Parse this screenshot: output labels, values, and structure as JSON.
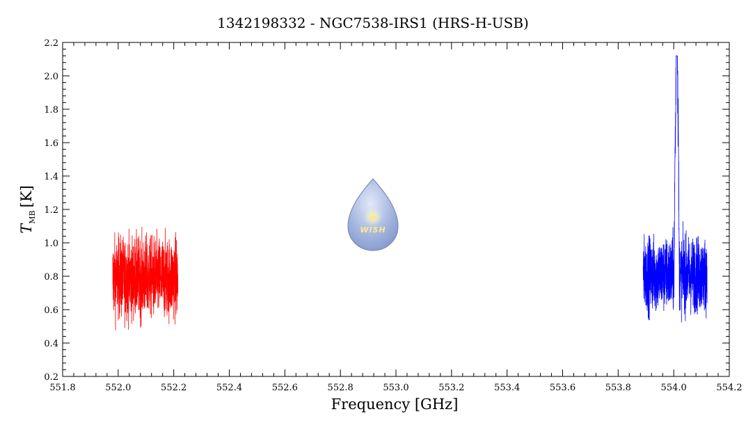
{
  "chart_data": {
    "type": "line",
    "title": "1342198332 - NGC7538-IRS1 (HRS-H-USB)",
    "xlabel": "Frequency [GHz]",
    "ylabel_main": "T",
    "ylabel_sub": "MB",
    "ylabel_unit": "[K]",
    "xlim": [
      551.8,
      554.2
    ],
    "ylim": [
      0.2,
      2.2
    ],
    "xticks": [
      551.8,
      552.0,
      552.2,
      552.4,
      552.6,
      552.8,
      553.0,
      553.2,
      553.4,
      553.6,
      553.8,
      554.0,
      554.2
    ],
    "xtick_labels": [
      "551.8",
      "552.0",
      "552.2",
      "552.4",
      "552.6",
      "552.8",
      "553.0",
      "553.2",
      "553.4",
      "553.6",
      "553.8",
      "554.0",
      "554.2"
    ],
    "yticks": [
      0.2,
      0.4,
      0.6,
      0.8,
      1.0,
      1.2,
      1.4,
      1.6,
      1.8,
      2.0,
      2.2
    ],
    "ytick_labels": [
      "0.2",
      "0.4",
      "0.6",
      "0.8",
      "1.0",
      "1.2",
      "1.4",
      "1.6",
      "1.8",
      "2.0",
      "2.2"
    ],
    "grid": false,
    "series": [
      {
        "color": "#ff0000",
        "x_range": [
          551.98,
          552.215
        ],
        "baseline": 0.79,
        "noise_range": [
          0.4,
          1.23
        ],
        "peaks": []
      },
      {
        "color": "#0000ff",
        "x_range": [
          553.89,
          554.12
        ],
        "baseline": 0.81,
        "noise_range": [
          0.41,
          1.17
        ],
        "peaks": [
          {
            "x": 554.005,
            "y": 1.5
          },
          {
            "x": 554.009,
            "y": 1.93
          },
          {
            "x": 554.012,
            "y": 2.12
          },
          {
            "x": 554.016,
            "y": 1.65
          }
        ]
      }
    ]
  },
  "watermark": {
    "label": "WISH",
    "icon": "water-drop-logo",
    "colors": {
      "drop": "#8fa6d9",
      "star": "#ffe98a"
    }
  }
}
